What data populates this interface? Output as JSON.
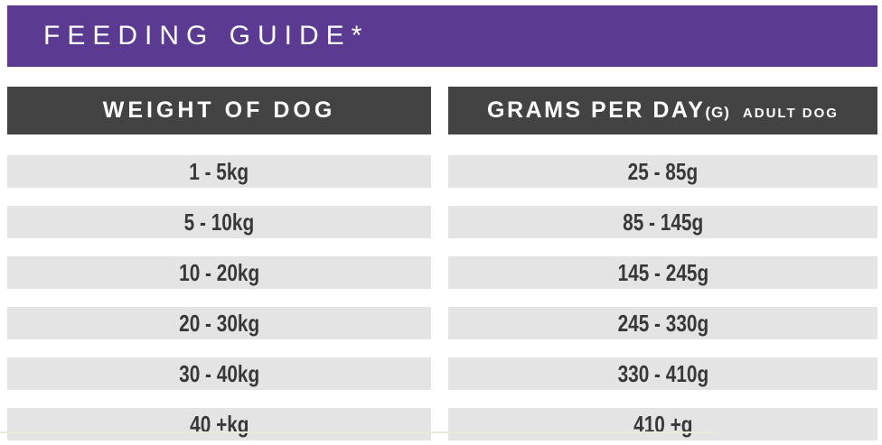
{
  "banner": {
    "title": "FEEDING GUIDE*"
  },
  "table": {
    "headers": {
      "weight": "WEIGHT OF DOG",
      "grams_main": "GRAMS PER DAY",
      "grams_unit": "(G)",
      "grams_audience": "ADULT DOG"
    },
    "rows": [
      {
        "weight": "1 - 5kg",
        "grams": "25 - 85g"
      },
      {
        "weight": "5 - 10kg",
        "grams": "85 - 145g"
      },
      {
        "weight": "10 - 20kg",
        "grams": "145 - 245g"
      },
      {
        "weight": "20 - 30kg",
        "grams": "245 - 330g"
      },
      {
        "weight": "30 - 40kg",
        "grams": "330 - 410g"
      },
      {
        "weight": "40 +kg",
        "grams": "410 +g"
      }
    ]
  },
  "colors": {
    "banner_purple": "#5b3b91",
    "header_gray": "#434343",
    "row_gray": "#e4e4e4",
    "row_text": "#383838",
    "header_text": "#ffffff"
  },
  "chart_data": {
    "type": "table",
    "title": "FEEDING GUIDE*",
    "columns": [
      "WEIGHT OF DOG",
      "GRAMS PER DAY(G) ADULT DOG"
    ],
    "rows": [
      [
        "1 - 5kg",
        "25 - 85g"
      ],
      [
        "5 - 10kg",
        "85 - 145g"
      ],
      [
        "10 - 20kg",
        "145 - 245g"
      ],
      [
        "20 - 30kg",
        "245 - 330g"
      ],
      [
        "30 - 40kg",
        "330 - 410g"
      ],
      [
        "40 +kg",
        "410 +g"
      ]
    ]
  }
}
